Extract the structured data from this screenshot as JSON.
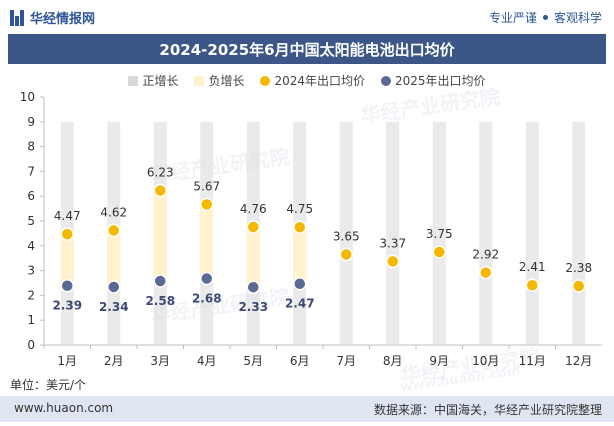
{
  "header": {
    "brand": "华经情报网",
    "slogan_left": "专业严谨",
    "slogan_right": "客观科学"
  },
  "watermark": "华经产业研究院",
  "watermark_url": "www.huaon.com",
  "unit_label": "单位：美元/个",
  "footer": {
    "url": "www.huaon.com",
    "source": "数据来源：中国海关，华经产业研究院整理"
  },
  "colors": {
    "title_bar": "#3c5688",
    "increase": "#d9d9d9",
    "decrease": "#fff2cc",
    "series_2024": "#f5b800",
    "series_2025": "#5b6a94",
    "footer_bg": "#dfe6f1"
  },
  "chart_data": {
    "type": "scatter",
    "title": "2024-2025年6月中国太阳能电池出口均价",
    "categories": [
      "1月",
      "2月",
      "3月",
      "4月",
      "5月",
      "6月",
      "7月",
      "8月",
      "9月",
      "10月",
      "11月",
      "12月"
    ],
    "series": [
      {
        "name": "2024年出口均价",
        "values": [
          4.47,
          4.62,
          6.23,
          5.67,
          4.76,
          4.75,
          3.65,
          3.37,
          3.75,
          2.92,
          2.41,
          2.38
        ]
      },
      {
        "name": "2025年出口均价",
        "values": [
          2.39,
          2.34,
          2.58,
          2.68,
          2.33,
          2.47,
          null,
          null,
          null,
          null,
          null,
          null
        ]
      }
    ],
    "range_series": [
      {
        "name": "正增长"
      },
      {
        "name": "负增长"
      }
    ],
    "yticks": [
      0,
      1,
      2,
      3,
      4,
      5,
      6,
      7,
      8,
      9,
      10
    ],
    "ylim": [
      0,
      10
    ],
    "grid": false,
    "legend": "top"
  }
}
